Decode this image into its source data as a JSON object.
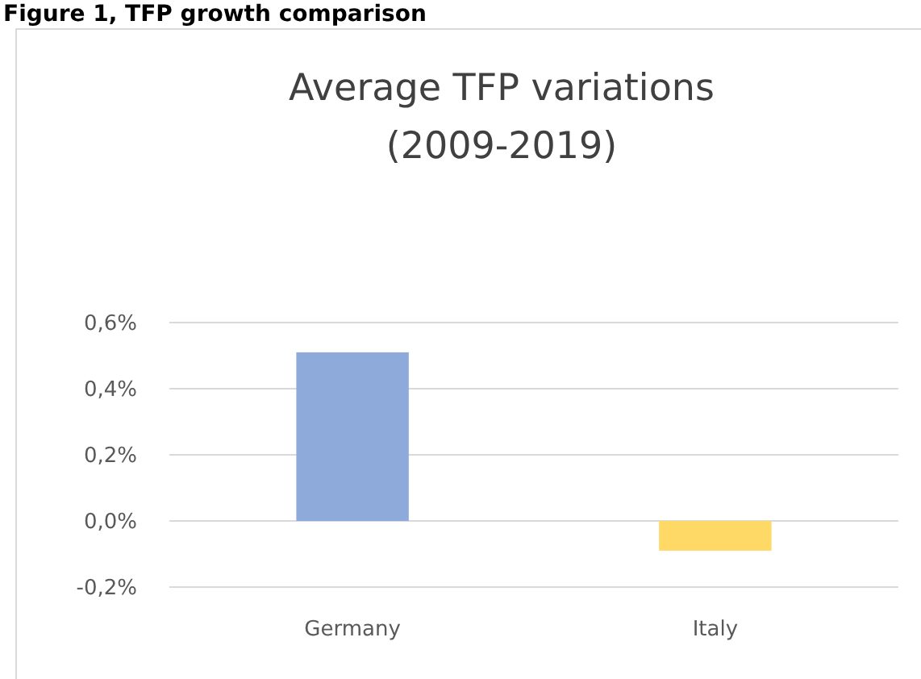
{
  "chart_data": {
    "type": "bar",
    "title": "Average TFP variations\n(2009-2019)",
    "annotations": [
      "Figure 1, TFP growth comparison"
    ],
    "categories": [
      "Germany",
      "Italy"
    ],
    "values": [
      0.51,
      -0.09
    ],
    "colors": [
      "#8eaadb",
      "#ffd966"
    ],
    "ylim": [
      -0.2,
      0.6
    ],
    "yticks": [
      {
        "value": -0.2,
        "label": "-0,2%"
      },
      {
        "value": 0,
        "label": "0,0%"
      },
      {
        "value": 0.2,
        "label": "0,2%"
      },
      {
        "value": 0.4,
        "label": "0,4%"
      },
      {
        "value": 0.6,
        "label": "0,6%"
      }
    ],
    "grid": "y"
  }
}
